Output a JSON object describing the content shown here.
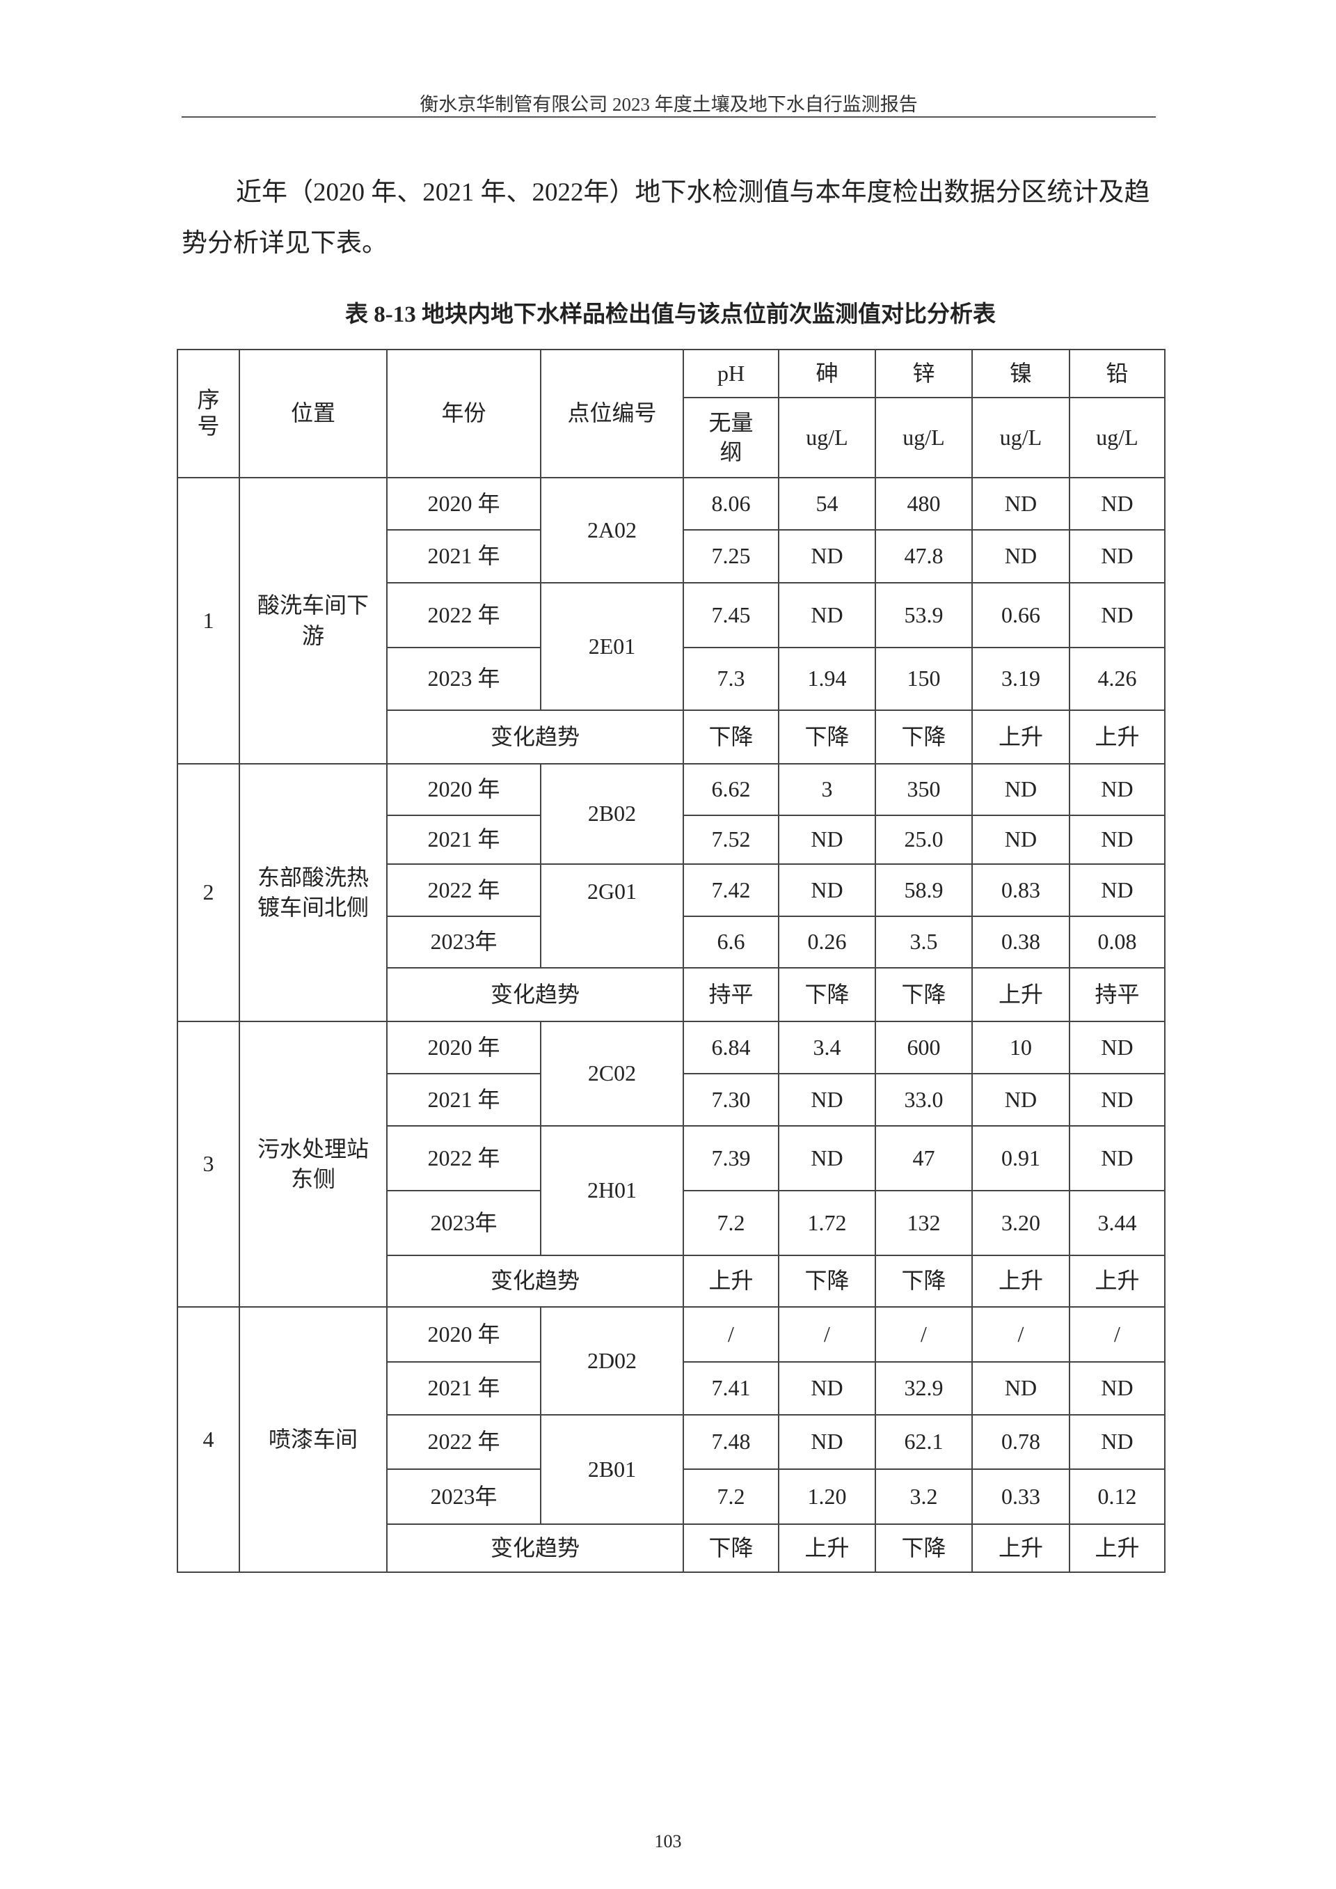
{
  "header": {
    "title": "衡水京华制管有限公司 2023 年度土壤及地下水自行监测报告"
  },
  "intro": "近年（2020 年、2021 年、2022年）地下水检测值与本年度检出数据分区统计及趋势分析详见下表。",
  "table": {
    "caption": "表 8-13   地块内地下水样品检出值与该点位前次监测值对比分析表",
    "headers": {
      "index": "序号",
      "location": "位置",
      "year": "年份",
      "point_code": "点位编号",
      "parameters": [
        "pH",
        "砷",
        "锌",
        "镍",
        "铅"
      ],
      "units": [
        "无量纲",
        "ug/L",
        "ug/L",
        "ug/L",
        "ug/L"
      ]
    },
    "trend_label": "变化趋势",
    "groups": [
      {
        "index": "1",
        "location": "酸洗车间下游",
        "codes": [
          "2A02",
          "2E01"
        ],
        "rows": [
          {
            "year": "2020 年",
            "values": [
              "8.06",
              "54",
              "480",
              "ND",
              "ND"
            ]
          },
          {
            "year": "2021 年",
            "values": [
              "7.25",
              "ND",
              "47.8",
              "ND",
              "ND"
            ]
          },
          {
            "year": "2022 年",
            "values": [
              "7.45",
              "ND",
              "53.9",
              "0.66",
              "ND"
            ]
          },
          {
            "year": "2023 年",
            "values": [
              "7.3",
              "1.94",
              "150",
              "3.19",
              "4.26"
            ]
          }
        ],
        "trend": [
          "下降",
          "下降",
          "下降",
          "上升",
          "上升"
        ]
      },
      {
        "index": "2",
        "location": "东部酸洗热镀车间北侧",
        "codes": [
          "2B02",
          "2G01"
        ],
        "rows": [
          {
            "year": "2020 年",
            "values": [
              "6.62",
              "3",
              "350",
              "ND",
              "ND"
            ]
          },
          {
            "year": "2021 年",
            "values": [
              "7.52",
              "ND",
              "25.0",
              "ND",
              "ND"
            ]
          },
          {
            "year": "2022 年",
            "values": [
              "7.42",
              "ND",
              "58.9",
              "0.83",
              "ND"
            ]
          },
          {
            "year": "2023年",
            "values": [
              "6.6",
              "0.26",
              "3.5",
              "0.38",
              "0.08"
            ]
          }
        ],
        "trend": [
          "持平",
          "下降",
          "下降",
          "上升",
          "持平"
        ]
      },
      {
        "index": "3",
        "location": "污水处理站东侧",
        "codes": [
          "2C02",
          "2H01"
        ],
        "rows": [
          {
            "year": "2020 年",
            "values": [
              "6.84",
              "3.4",
              "600",
              "10",
              "ND"
            ]
          },
          {
            "year": "2021 年",
            "values": [
              "7.30",
              "ND",
              "33.0",
              "ND",
              "ND"
            ]
          },
          {
            "year": "2022 年",
            "values": [
              "7.39",
              "ND",
              "47",
              "0.91",
              "ND"
            ]
          },
          {
            "year": "2023年",
            "values": [
              "7.2",
              "1.72",
              "132",
              "3.20",
              "3.44"
            ]
          }
        ],
        "trend": [
          "上升",
          "下降",
          "下降",
          "上升",
          "上升"
        ]
      },
      {
        "index": "4",
        "location": "喷漆车间",
        "codes": [
          "2D02",
          "2B01"
        ],
        "rows": [
          {
            "year": "2020 年",
            "values": [
              "/",
              "/",
              "/",
              "/",
              "/"
            ]
          },
          {
            "year": "2021 年",
            "values": [
              "7.41",
              "ND",
              "32.9",
              "ND",
              "ND"
            ]
          },
          {
            "year": "2022 年",
            "values": [
              "7.48",
              "ND",
              "62.1",
              "0.78",
              "ND"
            ]
          },
          {
            "year": "2023年",
            "values": [
              "7.2",
              "1.20",
              "3.2",
              "0.33",
              "0.12"
            ]
          }
        ],
        "trend": [
          "下降",
          "上升",
          "下降",
          "上升",
          "上升"
        ]
      }
    ]
  },
  "page_number": "103"
}
